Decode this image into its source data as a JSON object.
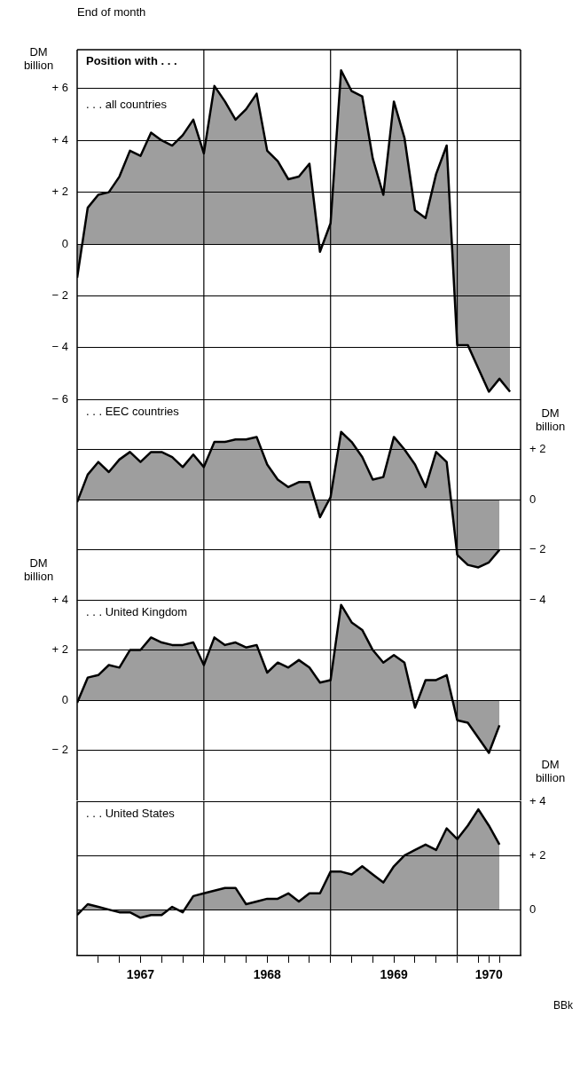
{
  "chart_data": [
    {
      "type": "area",
      "title": "End of month",
      "subtitle": "Position with . . .",
      "ylabel": "DM billion",
      "x": [
        "1966-12",
        "1967-01",
        "1967-02",
        "1967-03",
        "1967-04",
        "1967-05",
        "1967-06",
        "1967-07",
        "1967-08",
        "1967-09",
        "1967-10",
        "1967-11",
        "1967-12",
        "1968-01",
        "1968-02",
        "1968-03",
        "1968-04",
        "1968-05",
        "1968-06",
        "1968-07",
        "1968-08",
        "1968-09",
        "1968-10",
        "1968-11",
        "1968-12",
        "1969-01",
        "1969-02",
        "1969-03",
        "1969-04",
        "1969-05",
        "1969-06",
        "1969-07",
        "1969-08",
        "1969-09",
        "1969-10",
        "1969-11",
        "1969-12",
        "1970-01",
        "1970-02",
        "1970-03",
        "1970-04",
        "1970-05"
      ],
      "series": [
        {
          "name": ". . . all countries",
          "color": "#000000",
          "values": [
            -1.3,
            1.4,
            1.9,
            2.0,
            2.6,
            3.6,
            3.4,
            4.3,
            4.0,
            3.8,
            4.2,
            4.8,
            3.5,
            6.1,
            5.5,
            4.8,
            5.2,
            5.8,
            3.6,
            3.2,
            2.5,
            2.6,
            3.1,
            -0.3,
            0.8,
            6.7,
            5.9,
            5.7,
            3.3,
            1.9,
            5.5,
            4.1,
            1.3,
            1.0,
            2.7,
            3.8,
            -3.9,
            -3.9,
            -4.8,
            -5.7,
            -5.2,
            -5.7
          ]
        }
      ],
      "xlim": [
        "1966-12",
        "1970-06"
      ],
      "ylim": [
        -6,
        7.5
      ],
      "yticks": [
        {
          "value": 6,
          "label": "+ 6"
        },
        {
          "value": 4,
          "label": "+ 4"
        },
        {
          "value": 2,
          "label": "+ 2"
        },
        0,
        {
          "value": -2,
          "label": "− 2"
        },
        {
          "value": -4,
          "label": "− 4"
        },
        {
          "value": -6,
          "label": "− 6"
        }
      ],
      "ref_lines": [
        {
          "axis": "x",
          "value": "1967-12"
        },
        {
          "axis": "x",
          "value": "1968-12"
        },
        {
          "axis": "x",
          "value": "1969-12"
        }
      ],
      "grid": "y",
      "tick_labels": "y"
    },
    {
      "type": "area",
      "y2label": "DM billion",
      "x": [
        "1966-12",
        "1967-01",
        "1967-02",
        "1967-03",
        "1967-04",
        "1967-05",
        "1967-06",
        "1967-07",
        "1967-08",
        "1967-09",
        "1967-10",
        "1967-11",
        "1967-12",
        "1968-01",
        "1968-02",
        "1968-03",
        "1968-04",
        "1968-05",
        "1968-06",
        "1968-07",
        "1968-08",
        "1968-09",
        "1968-10",
        "1968-11",
        "1968-12",
        "1969-01",
        "1969-02",
        "1969-03",
        "1969-04",
        "1969-05",
        "1969-06",
        "1969-07",
        "1969-08",
        "1969-09",
        "1969-10",
        "1969-11",
        "1969-12",
        "1970-01",
        "1970-02",
        "1970-03",
        "1970-04"
      ],
      "series": [
        {
          "name": ". . . EEC countries",
          "color": "#000000",
          "axis": "y2",
          "values": [
            -0.1,
            1.0,
            1.5,
            1.1,
            1.6,
            1.9,
            1.5,
            1.9,
            1.9,
            1.7,
            1.3,
            1.8,
            1.3,
            2.3,
            2.3,
            2.4,
            2.4,
            2.5,
            1.4,
            0.8,
            0.5,
            0.7,
            0.7,
            -0.7,
            0.1,
            2.7,
            2.3,
            1.7,
            0.8,
            0.9,
            2.5,
            2.0,
            1.4,
            0.5,
            1.9,
            1.5,
            -2.2,
            -2.6,
            -2.7,
            -2.5,
            -2.0
          ]
        }
      ],
      "xlim": [
        "1966-12",
        "1970-06"
      ],
      "y2lim": [
        -4,
        4
      ],
      "y2ticks": [
        {
          "value": 2,
          "label": "+ 2"
        },
        0,
        {
          "value": -2,
          "label": "− 2"
        },
        {
          "value": -4,
          "label": "− 4"
        }
      ],
      "ref_lines": [
        {
          "axis": "x",
          "value": "1967-12"
        },
        {
          "axis": "x",
          "value": "1968-12"
        },
        {
          "axis": "x",
          "value": "1969-12"
        }
      ],
      "grid": "y",
      "tick_labels": "y"
    },
    {
      "type": "area",
      "ylabel": "DM billion",
      "x": [
        "1966-12",
        "1967-01",
        "1967-02",
        "1967-03",
        "1967-04",
        "1967-05",
        "1967-06",
        "1967-07",
        "1967-08",
        "1967-09",
        "1967-10",
        "1967-11",
        "1967-12",
        "1968-01",
        "1968-02",
        "1968-03",
        "1968-04",
        "1968-05",
        "1968-06",
        "1968-07",
        "1968-08",
        "1968-09",
        "1968-10",
        "1968-11",
        "1968-12",
        "1969-01",
        "1969-02",
        "1969-03",
        "1969-04",
        "1969-05",
        "1969-06",
        "1969-07",
        "1969-08",
        "1969-09",
        "1969-10",
        "1969-11",
        "1969-12",
        "1970-01",
        "1970-02",
        "1970-03",
        "1970-04"
      ],
      "series": [
        {
          "name": ". . . United Kingdom",
          "color": "#000000",
          "values": [
            -0.1,
            0.9,
            1.0,
            1.4,
            1.3,
            2.0,
            2.0,
            2.5,
            2.3,
            2.2,
            2.2,
            2.3,
            1.4,
            2.5,
            2.2,
            2.3,
            2.1,
            2.2,
            1.1,
            1.5,
            1.3,
            1.6,
            1.3,
            0.7,
            0.8,
            3.8,
            3.1,
            2.8,
            2.0,
            1.5,
            1.8,
            1.5,
            -0.3,
            0.8,
            0.8,
            1.0,
            -0.8,
            -0.9,
            -1.5,
            -2.1,
            -1.0
          ]
        }
      ],
      "xlim": [
        "1966-12",
        "1970-06"
      ],
      "ylim": [
        -4,
        4
      ],
      "yticks": [
        {
          "value": 4,
          "label": "+ 4"
        },
        {
          "value": 2,
          "label": "+ 2"
        },
        0,
        {
          "value": -2,
          "label": "− 2"
        }
      ],
      "ref_lines": [
        {
          "axis": "x",
          "value": "1967-12"
        },
        {
          "axis": "x",
          "value": "1968-12"
        },
        {
          "axis": "x",
          "value": "1969-12"
        }
      ],
      "grid": "y",
      "tick_labels": "y"
    },
    {
      "type": "area",
      "y2label": "DM billion",
      "x": [
        "1966-12",
        "1967-01",
        "1967-02",
        "1967-03",
        "1967-04",
        "1967-05",
        "1967-06",
        "1967-07",
        "1967-08",
        "1967-09",
        "1967-10",
        "1967-11",
        "1967-12",
        "1968-01",
        "1968-02",
        "1968-03",
        "1968-04",
        "1968-05",
        "1968-06",
        "1968-07",
        "1968-08",
        "1968-09",
        "1968-10",
        "1968-11",
        "1968-12",
        "1969-01",
        "1969-02",
        "1969-03",
        "1969-04",
        "1969-05",
        "1969-06",
        "1969-07",
        "1969-08",
        "1969-09",
        "1969-10",
        "1969-11",
        "1969-12",
        "1970-01",
        "1970-02",
        "1970-03",
        "1970-04"
      ],
      "series": [
        {
          "name": ". . . United States",
          "color": "#000000",
          "axis": "y2",
          "values": [
            -0.2,
            0.2,
            0.1,
            0.0,
            -0.1,
            -0.1,
            -0.3,
            -0.2,
            -0.2,
            0.1,
            -0.1,
            0.5,
            0.6,
            0.7,
            0.8,
            0.8,
            0.2,
            0.3,
            0.4,
            0.4,
            0.6,
            0.3,
            0.6,
            0.6,
            1.4,
            1.4,
            1.3,
            1.6,
            1.3,
            1.0,
            1.6,
            2.0,
            2.2,
            2.4,
            2.2,
            3.0,
            2.6,
            3.1,
            3.7,
            3.1,
            2.4
          ]
        }
      ],
      "xlim": [
        "1966-12",
        "1970-06"
      ],
      "y2lim": [
        -1.7,
        4
      ],
      "y2ticks": [
        {
          "value": 4,
          "label": "+ 4"
        },
        {
          "value": 2,
          "label": "+ 2"
        },
        0
      ],
      "xticks": [
        {
          "value": "1967-02",
          "label": null
        },
        {
          "value": "1967-04",
          "label": null
        },
        {
          "value": "1967-06",
          "label": "1967"
        },
        {
          "value": "1967-08",
          "label": null
        },
        {
          "value": "1967-10",
          "label": null
        },
        {
          "value": "1967-12",
          "label": null
        },
        {
          "value": "1968-02",
          "label": null
        },
        {
          "value": "1968-04",
          "label": null
        },
        {
          "value": "1968-06",
          "label": "1968"
        },
        {
          "value": "1968-08",
          "label": null
        },
        {
          "value": "1968-10",
          "label": null
        },
        {
          "value": "1968-12",
          "label": null
        },
        {
          "value": "1969-02",
          "label": null
        },
        {
          "value": "1969-04",
          "label": null
        },
        {
          "value": "1969-06",
          "label": "1969"
        },
        {
          "value": "1969-08",
          "label": null
        },
        {
          "value": "1969-10",
          "label": null
        },
        {
          "value": "1969-12",
          "label": null
        },
        {
          "value": "1970-02",
          "label": null
        },
        {
          "value": "1970-03",
          "label": "1970"
        },
        {
          "value": "1970-04",
          "label": null
        }
      ],
      "ref_lines": [
        {
          "axis": "x",
          "value": "1967-12"
        },
        {
          "axis": "x",
          "value": "1968-12"
        },
        {
          "axis": "x",
          "value": "1969-12"
        }
      ],
      "annotations": [
        "BBk"
      ],
      "grid": "y"
    }
  ]
}
